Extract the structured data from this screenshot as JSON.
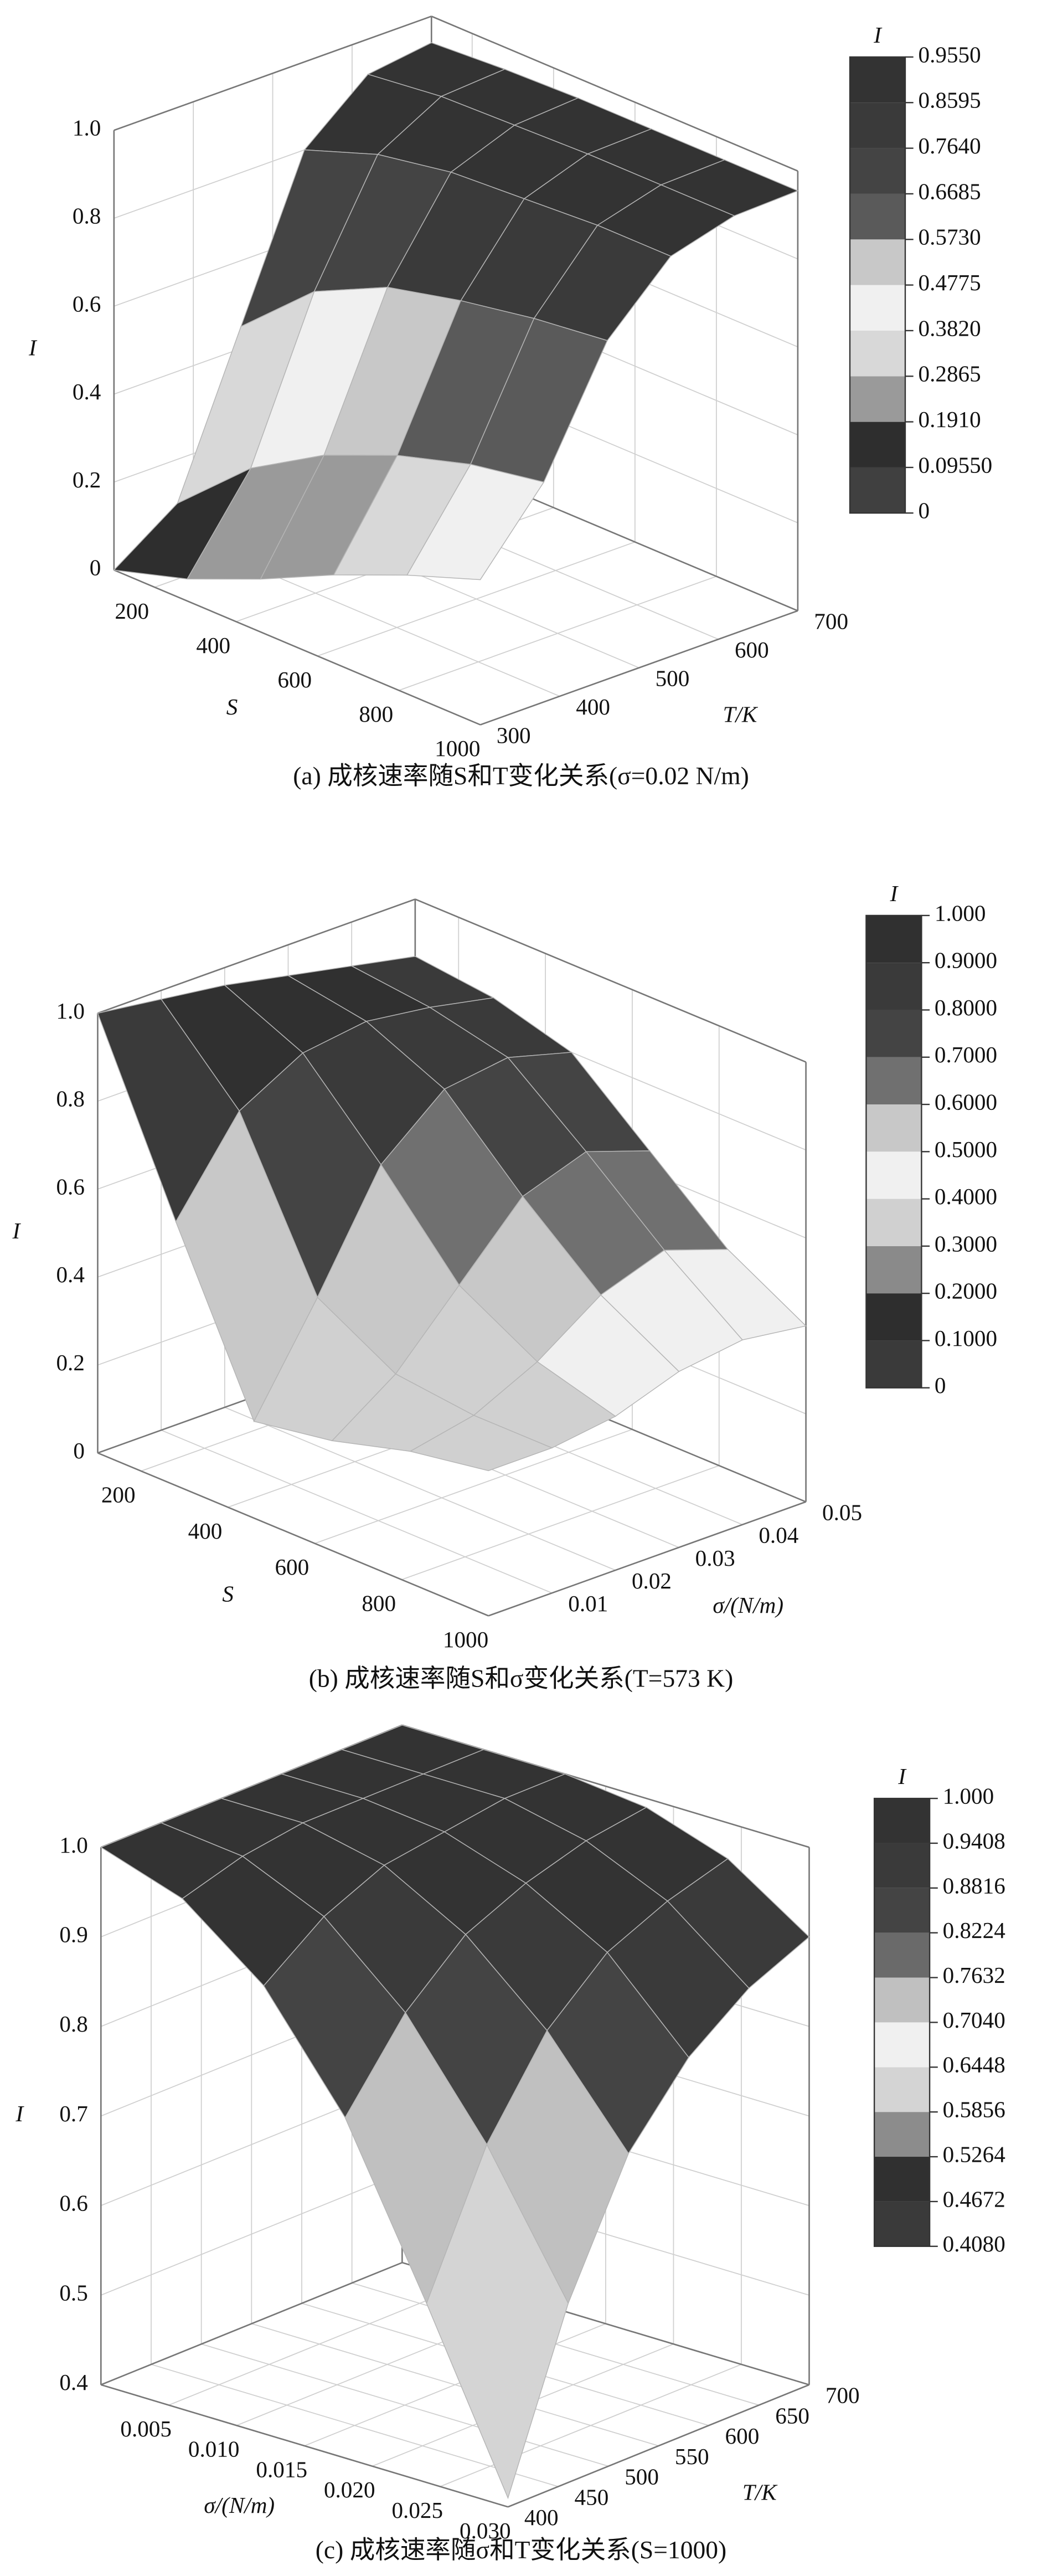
{
  "chart_data": [
    {
      "type": "surface",
      "caption": "(a) 成核速率随S和T变化关系(σ=0.02 N/m)",
      "xlabel": "S",
      "ylabel": "T/K",
      "zlabel": "I",
      "x": [
        100,
        280,
        460,
        640,
        820,
        1000
      ],
      "y": [
        300,
        380,
        460,
        540,
        620,
        700
      ],
      "z": [
        [
          0,
          0.1,
          0.45,
          0.8,
          0.92,
          0.94
        ],
        [
          0.05,
          0.25,
          0.6,
          0.86,
          0.94,
          0.95
        ],
        [
          0.12,
          0.35,
          0.68,
          0.89,
          0.945,
          0.955
        ],
        [
          0.2,
          0.42,
          0.72,
          0.9,
          0.95,
          0.955
        ],
        [
          0.27,
          0.47,
          0.75,
          0.91,
          0.95,
          0.955
        ],
        [
          0.33,
          0.5,
          0.77,
          0.91,
          0.95,
          0.955
        ]
      ],
      "xlim": [
        100,
        1000
      ],
      "ylim": [
        300,
        700
      ],
      "zlim": [
        0,
        1
      ],
      "xticks": [
        200,
        400,
        600,
        800,
        1000
      ],
      "yticks": [
        300,
        400,
        500,
        600,
        700
      ],
      "zticks": [
        0,
        0.2,
        0.4,
        0.6,
        0.8,
        {
          "value": 1,
          "label": "1.0"
        }
      ],
      "colorbar": {
        "title": "I",
        "ticks": [
          0,
          {
            "value": 0.0955,
            "label": "0.09550"
          },
          {
            "value": 0.191,
            "label": "0.1910"
          },
          0.2865,
          {
            "value": 0.382,
            "label": "0.3820"
          },
          0.4775,
          {
            "value": 0.573,
            "label": "0.5730"
          },
          0.6685,
          {
            "value": 0.764,
            "label": "0.7640"
          },
          0.8595,
          {
            "value": 0.955,
            "label": "0.9550"
          }
        ],
        "colors": [
          "#404040",
          "#2e2e2e",
          "#9a9a9a",
          "#d8d8d8",
          "#f0f0f0",
          "#c8c8c8",
          "#5a5a5a",
          "#444444",
          "#3a3a3a",
          "#333333"
        ]
      }
    },
    {
      "type": "surface",
      "caption": "(b) 成核速率随S和σ变化关系(T=573 K)",
      "xlabel": "S",
      "ylabel": "σ/(N/m)",
      "zlabel": "I",
      "x": [
        100,
        280,
        460,
        640,
        820,
        1000
      ],
      "y": [
        0,
        0.01,
        0.02,
        0.03,
        0.04,
        0.05
      ],
      "z": [
        [
          1,
          0.98,
          0.96,
          0.93,
          0.9,
          0.87
        ],
        [
          0.6,
          0.8,
          0.88,
          0.9,
          0.88,
          0.85
        ],
        [
          0.22,
          0.45,
          0.7,
          0.82,
          0.84,
          0.8
        ],
        [
          0.25,
          0.35,
          0.5,
          0.65,
          0.7,
          0.65
        ],
        [
          0.3,
          0.33,
          0.4,
          0.5,
          0.55,
          0.5
        ],
        [
          0.33,
          0.33,
          0.35,
          0.4,
          0.42,
          0.4
        ]
      ],
      "xlim": [
        100,
        1000
      ],
      "ylim": [
        0,
        0.05
      ],
      "zlim": [
        0,
        1
      ],
      "xticks": [
        200,
        400,
        600,
        800,
        1000
      ],
      "yticks": [
        0.01,
        0.02,
        0.03,
        0.04,
        0.05
      ],
      "zticks": [
        0,
        0.2,
        0.4,
        0.6,
        0.8,
        {
          "value": 1,
          "label": "1.0"
        }
      ],
      "colorbar": {
        "title": "I",
        "ticks": [
          0,
          {
            "value": 0.1,
            "label": "0.1000"
          },
          {
            "value": 0.2,
            "label": "0.2000"
          },
          {
            "value": 0.3,
            "label": "0.3000"
          },
          {
            "value": 0.4,
            "label": "0.4000"
          },
          {
            "value": 0.5,
            "label": "0.5000"
          },
          {
            "value": 0.6,
            "label": "0.6000"
          },
          {
            "value": 0.7,
            "label": "0.7000"
          },
          {
            "value": 0.8,
            "label": "0.8000"
          },
          {
            "value": 0.9,
            "label": "0.9000"
          },
          {
            "value": 1,
            "label": "1.000"
          }
        ],
        "colors": [
          "#3a3a3a",
          "#2e2e2e",
          "#8a8a8a",
          "#d0d0d0",
          "#f0f0f0",
          "#c8c8c8",
          "#707070",
          "#444444",
          "#3a3a3a",
          "#303030"
        ]
      }
    },
    {
      "type": "surface",
      "caption": "(c) 成核速率随σ和T变化关系(S=1000)",
      "xlabel": "σ/(N/m)",
      "ylabel": "T/K",
      "zlabel": "I",
      "x": [
        0,
        0.006,
        0.012,
        0.018,
        0.024,
        0.03
      ],
      "y": [
        400,
        460,
        520,
        580,
        640,
        700
      ],
      "z": [
        [
          1,
          1,
          1,
          1,
          1,
          1
        ],
        [
          0.97,
          0.99,
          1,
          1,
          1,
          1
        ],
        [
          0.9,
          0.95,
          0.98,
          0.99,
          1,
          1
        ],
        [
          0.78,
          0.87,
          0.93,
          0.96,
          0.98,
          0.99
        ],
        [
          0.6,
          0.75,
          0.85,
          0.91,
          0.94,
          0.96
        ],
        [
          0.41,
          0.6,
          0.74,
          0.82,
          0.87,
          0.9
        ]
      ],
      "xlim": [
        0,
        0.03
      ],
      "ylim": [
        400,
        700
      ],
      "zlim": [
        0.4,
        1
      ],
      "xticks": [
        0.005,
        {
          "value": 0.01,
          "label": "0.010"
        },
        0.015,
        {
          "value": 0.02,
          "label": "0.020"
        },
        0.025,
        {
          "value": 0.03,
          "label": "0.030"
        }
      ],
      "yticks": [
        400,
        450,
        500,
        550,
        600,
        650,
        700
      ],
      "zticks": [
        0.4,
        0.5,
        0.6,
        0.7,
        0.8,
        0.9,
        {
          "value": 1,
          "label": "1.0"
        }
      ],
      "colorbar": {
        "title": "I",
        "ticks": [
          {
            "value": 0.408,
            "label": "0.4080"
          },
          0.4672,
          0.5264,
          0.5856,
          0.6448,
          {
            "value": 0.704,
            "label": "0.7040"
          },
          0.7632,
          0.8224,
          0.8816,
          0.9408,
          {
            "value": 1,
            "label": "1.000"
          }
        ],
        "colors": [
          "#3a3a3a",
          "#303030",
          "#8c8c8c",
          "#d4d4d4",
          "#f0f0f0",
          "#c0c0c0",
          "#6a6a6a",
          "#444444",
          "#3a3a3a",
          "#333333"
        ]
      }
    }
  ]
}
